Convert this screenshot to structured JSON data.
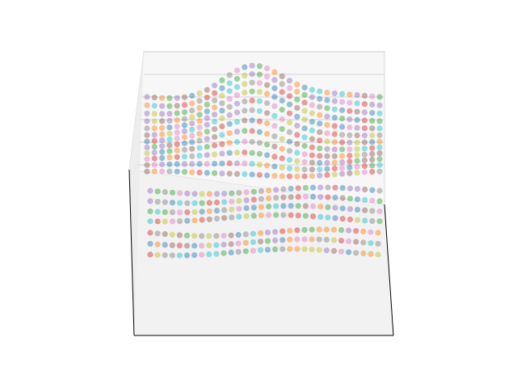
{
  "chart_data": {
    "type": "scatter",
    "projection": "3d",
    "title": "",
    "xlabel": "",
    "ylabel": "",
    "zlabel": "",
    "tick_labels_visible": false,
    "grid": true,
    "legend": "none",
    "xlim": [
      0,
      1
    ],
    "ylim": [
      0,
      1
    ],
    "zlim": [
      0,
      1
    ],
    "marker_alpha": 0.45,
    "colormap": "tab10",
    "colors": [
      "#1f77b4",
      "#ff7f0e",
      "#2ca02c",
      "#d62728",
      "#9467bd",
      "#8c564b",
      "#e377c2",
      "#7f7f7f",
      "#bcbd22",
      "#17becf"
    ],
    "pane_colors": {
      "back": "#f7f7f7",
      "floor": "#f2f2f2",
      "side": "#ededed"
    },
    "series": [
      {
        "band": "upper",
        "rows": 12,
        "columns": 32,
        "x_range": [
          0.0,
          1.0
        ],
        "z_range": [
          0.55,
          0.95
        ],
        "bulge": {
          "center": 0.45,
          "height": 0.12,
          "width": 0.18
        }
      },
      {
        "band": "middle",
        "rows": 4,
        "columns": 32,
        "x_range": [
          0.0,
          1.0
        ],
        "z_range": [
          0.33,
          0.43
        ]
      },
      {
        "band": "lower",
        "rows": 3,
        "columns": 32,
        "x_range": [
          0.0,
          1.0
        ],
        "z_range": [
          0.12,
          0.2
        ]
      }
    ]
  }
}
